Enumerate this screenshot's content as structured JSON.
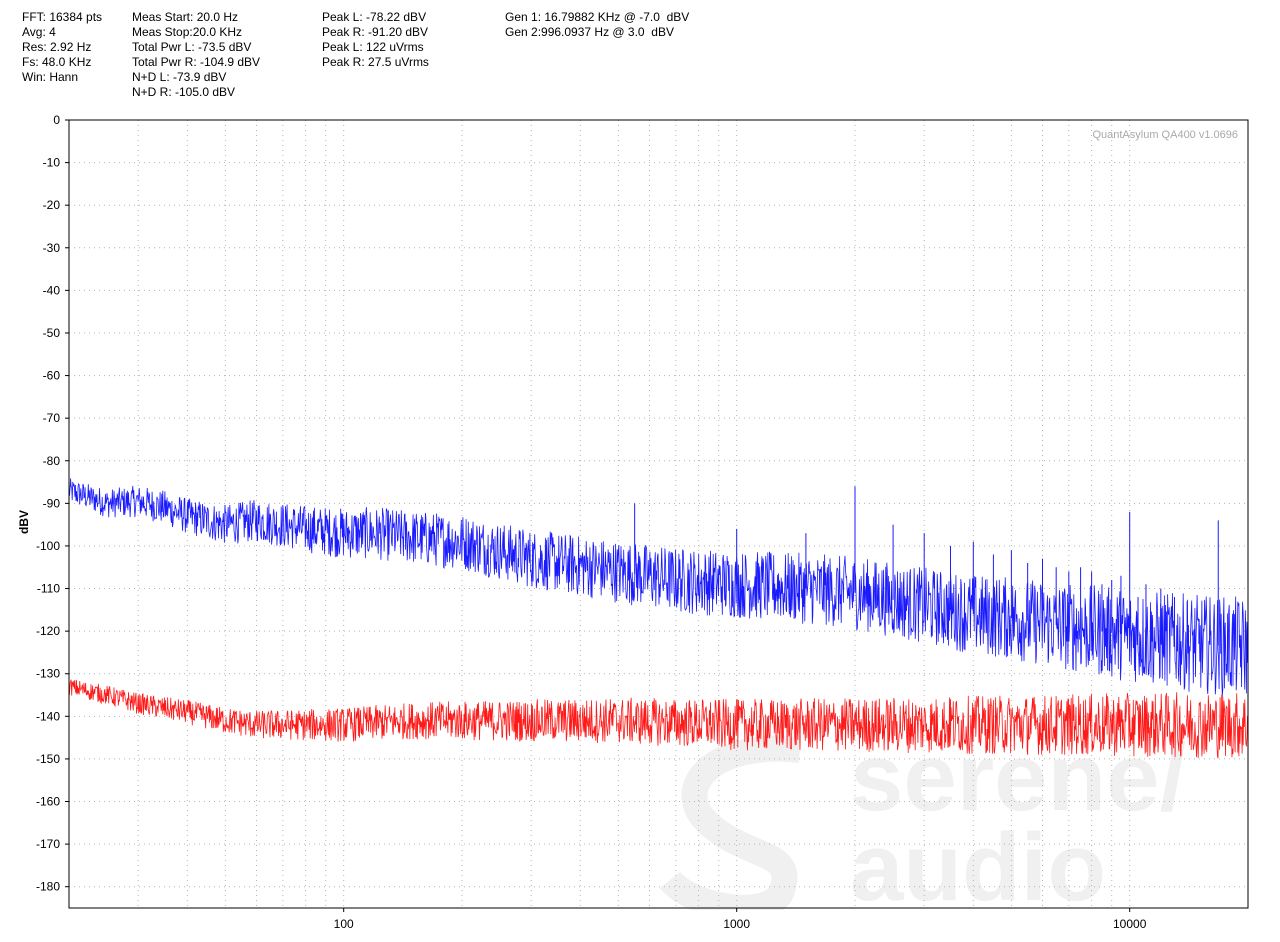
{
  "info": {
    "col1": [
      "FFT: 16384 pts",
      "Avg: 4",
      "Res: 2.92 Hz",
      "Fs: 48.0 KHz",
      "Win: Hann"
    ],
    "col2": [
      "Meas Start: 20.0 Hz",
      "Meas Stop:20.0 KHz",
      "Total Pwr L: -73.5 dBV",
      "Total Pwr R: -104.9 dBV",
      "N+D L: -73.9 dBV",
      "N+D R: -105.0 dBV"
    ],
    "col3": [
      "Peak L: -78.22 dBV",
      "Peak R: -91.20 dBV",
      "Peak L: 122 uVrms",
      "Peak R: 27.5 uVrms"
    ],
    "col4": [
      "Gen 1: 16.79882 KHz @ -7.0  dBV",
      "Gen 2:996.0937 Hz @ 3.0  dBV"
    ]
  },
  "version_text": "QuantAsylum QA400 v1.0696",
  "watermark": {
    "line1": "serene/",
    "line2": "audio",
    "logo": "s-swirl-logo"
  },
  "colors": {
    "left_channel": "#1a1aff",
    "right_channel": "#ff1a1a",
    "grid": "#b4b4b4",
    "watermark": "#f0f0f0"
  },
  "chart_data": {
    "type": "line",
    "x_scale": "log",
    "xlim": [
      20,
      20000
    ],
    "ylim": [
      -185,
      0
    ],
    "ylabel": "dBV",
    "xlabel": "",
    "x_ticks": [
      {
        "value": 100,
        "label": "100"
      },
      {
        "value": 1000,
        "label": "1000"
      },
      {
        "value": 10000,
        "label": "10000"
      }
    ],
    "y_ticks": [
      0,
      -10,
      -20,
      -30,
      -40,
      -50,
      -60,
      -70,
      -80,
      -90,
      -100,
      -110,
      -120,
      -130,
      -140,
      -150,
      -160,
      -170,
      -180
    ],
    "grid": true,
    "series": [
      {
        "channel": "left",
        "color": "#1a1aff",
        "baseline": [
          [
            20,
            -87
          ],
          [
            25,
            -90
          ],
          [
            30,
            -89.5
          ],
          [
            35,
            -91
          ],
          [
            40,
            -93
          ],
          [
            50,
            -95
          ],
          [
            60,
            -94
          ],
          [
            80,
            -96
          ],
          [
            100,
            -97
          ],
          [
            120,
            -97
          ],
          [
            150,
            -98
          ],
          [
            200,
            -99
          ],
          [
            300,
            -103
          ],
          [
            500,
            -106
          ],
          [
            700,
            -108
          ],
          [
            1000,
            -109
          ],
          [
            1500,
            -110
          ],
          [
            2000,
            -111
          ],
          [
            3000,
            -114
          ],
          [
            4000,
            -116
          ],
          [
            5000,
            -117
          ],
          [
            7000,
            -119
          ],
          [
            10000,
            -121
          ],
          [
            15000,
            -123
          ],
          [
            20000,
            -124
          ]
        ],
        "noise_spread": [
          [
            20,
            3
          ],
          [
            100,
            6
          ],
          [
            300,
            7
          ],
          [
            1000,
            8
          ],
          [
            3000,
            9
          ],
          [
            10000,
            11
          ],
          [
            20000,
            12
          ]
        ],
        "spikes": [
          [
            550,
            -90
          ],
          [
            1000,
            -96
          ],
          [
            1500,
            -97
          ],
          [
            2000,
            -86
          ],
          [
            2500,
            -95
          ],
          [
            3000,
            -97
          ],
          [
            3500,
            -100
          ],
          [
            4000,
            -99
          ],
          [
            4500,
            -102
          ],
          [
            5000,
            -101
          ],
          [
            5500,
            -104
          ],
          [
            6000,
            -103
          ],
          [
            6500,
            -105
          ],
          [
            7000,
            -106
          ],
          [
            7500,
            -105
          ],
          [
            8000,
            -106
          ],
          [
            8500,
            -109
          ],
          [
            9000,
            -108
          ],
          [
            9500,
            -107
          ],
          [
            10000,
            -92
          ],
          [
            10500,
            -112
          ],
          [
            11000,
            -109
          ],
          [
            12000,
            -110
          ],
          [
            13000,
            -112
          ],
          [
            14000,
            -113
          ],
          [
            15000,
            -118
          ],
          [
            16000,
            -115
          ],
          [
            16800,
            -94
          ],
          [
            17500,
            -118
          ],
          [
            18500,
            -116
          ]
        ]
      },
      {
        "channel": "right",
        "color": "#ff1a1a",
        "baseline": [
          [
            20,
            -133
          ],
          [
            25,
            -135
          ],
          [
            30,
            -137
          ],
          [
            40,
            -139
          ],
          [
            50,
            -141
          ],
          [
            60,
            -142
          ],
          [
            80,
            -142
          ],
          [
            100,
            -142
          ],
          [
            150,
            -141
          ],
          [
            200,
            -141
          ],
          [
            500,
            -141
          ],
          [
            1000,
            -142
          ],
          [
            2000,
            -142
          ],
          [
            5000,
            -142
          ],
          [
            10000,
            -142
          ],
          [
            20000,
            -142
          ]
        ],
        "noise_spread": [
          [
            20,
            2
          ],
          [
            100,
            4
          ],
          [
            300,
            5
          ],
          [
            1000,
            6
          ],
          [
            5000,
            7
          ],
          [
            20000,
            8
          ]
        ],
        "spikes": [
          [
            1000,
            -136
          ],
          [
            3500,
            -136
          ],
          [
            10000,
            -137
          ]
        ]
      }
    ]
  }
}
